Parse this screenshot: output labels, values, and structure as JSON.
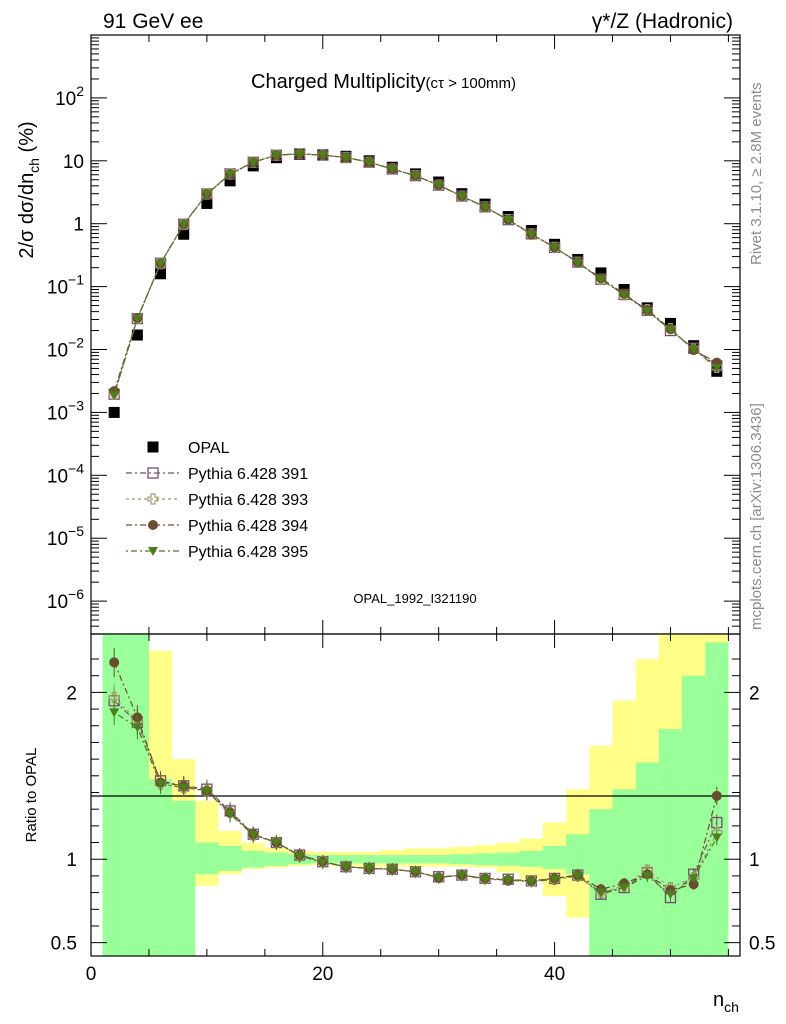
{
  "header": {
    "left": "91 GeV ee",
    "right": "γ*/Z (Hadronic)"
  },
  "side": {
    "rivet": "Rivet 3.1.10, ≥ 2.8M events",
    "mcplots": "mcplots.cern.ch [arXiv:1306.3436]"
  },
  "plot": {
    "title_main": "Charged Multiplicity",
    "title_cut": "(cτ > 100mm)",
    "analysis_id": "OPAL_1992_I321190",
    "ylabel_main": "2/σ dσ/dn",
    "ylabel_sub": "ch",
    "ylabel_unit": " (%)",
    "ratio_ylabel": "Ratio to OPAL",
    "xlabel_main": "n",
    "xlabel_sub": "ch"
  },
  "colors": {
    "opal": "#000000",
    "p391": "#7b4a6e",
    "p393": "#a5976b",
    "p394": "#6b4c2f",
    "p395": "#4d7f1a",
    "band_inner": "#99ff99",
    "band_outer": "#ffff88"
  },
  "chart_data": {
    "type": "scatter",
    "x": [
      2,
      4,
      6,
      8,
      10,
      12,
      14,
      16,
      18,
      20,
      22,
      24,
      26,
      28,
      30,
      32,
      34,
      36,
      38,
      40,
      42,
      44,
      46,
      48,
      50,
      52,
      54
    ],
    "x_range": [
      0,
      56
    ],
    "y_scale": "log",
    "y_range": [
      3e-07,
      1000
    ],
    "y_ticks": [
      "10^-6",
      "10^-5",
      "10^-4",
      "10^-3",
      "10^-2",
      "10^-1",
      "1",
      "10",
      "10^2"
    ],
    "x_ticks": [
      0,
      20,
      40
    ],
    "series": [
      {
        "name": "OPAL",
        "marker": "filled-square",
        "values": [
          0.001,
          0.017,
          0.16,
          0.68,
          2.1,
          4.8,
          8.3,
          11.2,
          12.6,
          12.5,
          11.8,
          10.0,
          7.9,
          6.2,
          4.6,
          3.0,
          2.05,
          1.3,
          0.78,
          0.47,
          0.27,
          0.165,
          0.09,
          0.046,
          0.026,
          0.0115,
          0.0045
        ]
      },
      {
        "name": "Pythia 6.428 391",
        "marker": "open-square",
        "values": [
          0.00195,
          0.031,
          0.235,
          0.98,
          2.98,
          6.2,
          9.5,
          12.3,
          12.9,
          12.3,
          11.3,
          9.5,
          7.4,
          5.8,
          4.1,
          2.75,
          1.85,
          1.16,
          0.69,
          0.42,
          0.245,
          0.131,
          0.075,
          0.042,
          0.02,
          0.0105,
          0.0055
        ]
      },
      {
        "name": "Pythia 6.428 393",
        "marker": "open-cross",
        "values": [
          0.00197,
          0.031,
          0.232,
          0.97,
          2.97,
          6.15,
          9.5,
          12.3,
          12.9,
          12.3,
          11.3,
          9.5,
          7.4,
          5.8,
          4.1,
          2.74,
          1.84,
          1.16,
          0.68,
          0.42,
          0.243,
          0.132,
          0.074,
          0.043,
          0.0215,
          0.0102,
          0.0052
        ]
      },
      {
        "name": "Pythia 6.428 394",
        "marker": "filled-circle",
        "values": [
          0.00218,
          0.0315,
          0.233,
          0.975,
          2.97,
          6.15,
          9.5,
          12.3,
          12.9,
          12.3,
          11.3,
          9.5,
          7.4,
          5.8,
          4.1,
          2.74,
          1.84,
          1.15,
          0.68,
          0.42,
          0.243,
          0.136,
          0.077,
          0.042,
          0.0212,
          0.0098,
          0.0062
        ]
      },
      {
        "name": "Pythia 6.428 395",
        "marker": "filled-triangle-down",
        "values": [
          0.00188,
          0.0305,
          0.232,
          0.975,
          2.96,
          6.1,
          9.5,
          12.3,
          12.9,
          12.3,
          11.3,
          9.5,
          7.4,
          5.8,
          4.1,
          2.73,
          1.83,
          1.15,
          0.68,
          0.42,
          0.242,
          0.13,
          0.074,
          0.041,
          0.0205,
          0.0102,
          0.0051
        ]
      }
    ],
    "ratio": {
      "y_range": [
        0.42,
        2.35
      ],
      "y_ticks": [
        0.5,
        1,
        2
      ],
      "series": [
        {
          "name": "Pythia 6.428 391",
          "values": [
            1.95,
            1.82,
            1.47,
            1.44,
            1.42,
            1.29,
            1.15,
            1.1,
            1.025,
            0.985,
            0.955,
            0.945,
            0.94,
            0.925,
            0.895,
            0.905,
            0.885,
            0.88,
            0.87,
            0.885,
            0.905,
            0.79,
            0.83,
            0.92,
            0.77,
            0.91,
            1.22
          ]
        },
        {
          "name": "Pythia 6.428 393",
          "values": [
            1.97,
            1.83,
            1.45,
            1.43,
            1.41,
            1.28,
            1.145,
            1.1,
            1.02,
            0.985,
            0.955,
            0.945,
            0.94,
            0.925,
            0.89,
            0.905,
            0.885,
            0.875,
            0.87,
            0.88,
            0.9,
            0.8,
            0.84,
            0.935,
            0.83,
            0.89,
            1.16
          ]
        },
        {
          "name": "Pythia 6.428 394",
          "values": [
            2.18,
            1.85,
            1.46,
            1.44,
            1.41,
            1.28,
            1.15,
            1.1,
            1.025,
            0.985,
            0.955,
            0.945,
            0.94,
            0.925,
            0.89,
            0.905,
            0.885,
            0.875,
            0.87,
            0.885,
            0.905,
            0.82,
            0.855,
            0.91,
            0.815,
            0.85,
            1.38
          ]
        },
        {
          "name": "Pythia 6.428 395",
          "values": [
            1.88,
            1.79,
            1.45,
            1.43,
            1.41,
            1.27,
            1.145,
            1.1,
            1.02,
            0.98,
            0.955,
            0.945,
            0.94,
            0.925,
            0.89,
            0.905,
            0.88,
            0.875,
            0.865,
            0.88,
            0.9,
            0.8,
            0.83,
            0.9,
            0.79,
            0.885,
            1.13
          ]
        }
      ],
      "bands": {
        "x_edges": [
          1,
          3,
          5,
          7,
          9,
          11,
          13,
          15,
          17,
          19,
          21,
          23,
          25,
          27,
          29,
          31,
          33,
          35,
          37,
          39,
          41,
          43,
          45,
          47,
          49,
          51,
          53,
          55
        ],
        "inner_low": [
          0.42,
          0.42,
          0.42,
          0.42,
          0.91,
          0.93,
          0.95,
          0.96,
          0.97,
          0.975,
          0.975,
          0.975,
          0.975,
          0.975,
          0.975,
          0.97,
          0.965,
          0.96,
          0.955,
          0.94,
          0.91,
          0.42,
          0.42,
          0.42,
          0.42,
          0.42,
          0.42
        ],
        "inner_high": [
          2.35,
          2.35,
          1.48,
          1.35,
          1.1,
          1.08,
          1.05,
          1.04,
          1.03,
          1.025,
          1.025,
          1.025,
          1.025,
          1.025,
          1.025,
          1.03,
          1.035,
          1.04,
          1.05,
          1.08,
          1.15,
          1.3,
          1.42,
          1.58,
          1.78,
          2.1,
          2.3
        ],
        "outer_low": [
          0.42,
          0.42,
          0.42,
          0.43,
          0.84,
          0.91,
          0.94,
          0.95,
          0.96,
          0.965,
          0.96,
          0.955,
          0.955,
          0.955,
          0.955,
          0.955,
          0.95,
          0.92,
          0.88,
          0.78,
          0.65,
          0.42,
          0.42,
          0.42,
          0.42,
          0.42,
          0.42
        ],
        "outer_high": [
          2.35,
          2.35,
          2.25,
          1.6,
          1.35,
          1.17,
          1.1,
          1.07,
          1.05,
          1.045,
          1.045,
          1.045,
          1.055,
          1.065,
          1.065,
          1.075,
          1.085,
          1.1,
          1.125,
          1.22,
          1.42,
          1.68,
          1.95,
          2.2,
          2.35,
          2.35,
          2.35
        ]
      }
    }
  }
}
